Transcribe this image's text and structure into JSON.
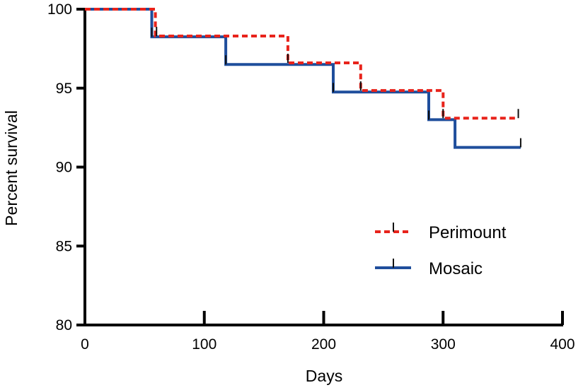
{
  "chart_data": {
    "type": "line",
    "title": "",
    "xlabel": "Days",
    "ylabel": "Percent survival",
    "xlim": [
      0,
      400
    ],
    "ylim": [
      80,
      100
    ],
    "x_ticks": [
      "0",
      "100",
      "200",
      "300",
      "400"
    ],
    "y_ticks": [
      "80",
      "85",
      "90",
      "95",
      "100"
    ],
    "legend_position": "lower-right",
    "grid": false,
    "series": [
      {
        "name": "Perimount",
        "color": "#e8231b",
        "style": "dashed-step",
        "points": [
          [
            0,
            100
          ],
          [
            59,
            100
          ],
          [
            59,
            98.3
          ],
          [
            170,
            98.3
          ],
          [
            170,
            96.6
          ],
          [
            231,
            96.6
          ],
          [
            231,
            94.85
          ],
          [
            300,
            94.85
          ],
          [
            300,
            93.1
          ],
          [
            363,
            93.1
          ]
        ],
        "censored": [
          [
            60,
            98.3
          ],
          [
            170,
            96.6
          ],
          [
            231,
            94.85
          ],
          [
            300,
            93.1
          ],
          [
            363,
            93.1
          ]
        ]
      },
      {
        "name": "Mosaic",
        "color": "#1f4e9c",
        "style": "solid-step",
        "points": [
          [
            0,
            100
          ],
          [
            56,
            100
          ],
          [
            56,
            98.25
          ],
          [
            118,
            98.25
          ],
          [
            118,
            96.5
          ],
          [
            208,
            96.5
          ],
          [
            208,
            94.75
          ],
          [
            288,
            94.75
          ],
          [
            288,
            93.0
          ],
          [
            310,
            93.0
          ],
          [
            310,
            91.25
          ],
          [
            365,
            91.25
          ]
        ],
        "censored": [
          [
            56,
            98.25
          ],
          [
            118,
            96.5
          ],
          [
            208,
            94.75
          ],
          [
            288,
            93.0
          ],
          [
            365,
            91.25
          ]
        ]
      }
    ]
  }
}
